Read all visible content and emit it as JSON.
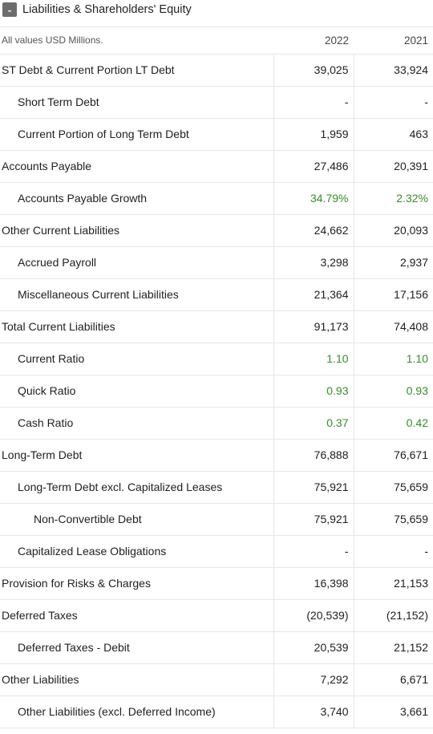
{
  "section": {
    "toggle_symbol": "-",
    "title": "Liabilities & Shareholders' Equity",
    "expanded": true
  },
  "table": {
    "unit_note": "All values USD Millions.",
    "years": [
      "2022",
      "2021"
    ],
    "rows": [
      {
        "label": "ST Debt & Current Portion LT Debt",
        "level": 0,
        "values": [
          "39,025",
          "33,924"
        ],
        "highlight": false
      },
      {
        "label": "Short Term Debt",
        "level": 1,
        "values": [
          "-",
          "-"
        ],
        "highlight": false
      },
      {
        "label": "Current Portion of Long Term Debt",
        "level": 1,
        "values": [
          "1,959",
          "463"
        ],
        "highlight": false
      },
      {
        "label": "Accounts Payable",
        "level": 0,
        "values": [
          "27,486",
          "20,391"
        ],
        "highlight": false
      },
      {
        "label": "Accounts Payable Growth",
        "level": 1,
        "values": [
          "34.79%",
          "2.32%"
        ],
        "highlight": true
      },
      {
        "label": "Other Current Liabilities",
        "level": 0,
        "values": [
          "24,662",
          "20,093"
        ],
        "highlight": false
      },
      {
        "label": "Accrued Payroll",
        "level": 1,
        "values": [
          "3,298",
          "2,937"
        ],
        "highlight": false
      },
      {
        "label": "Miscellaneous Current Liabilities",
        "level": 1,
        "values": [
          "21,364",
          "17,156"
        ],
        "highlight": false
      },
      {
        "label": "Total Current Liabilities",
        "level": 0,
        "values": [
          "91,173",
          "74,408"
        ],
        "highlight": false
      },
      {
        "label": "Current Ratio",
        "level": 1,
        "values": [
          "1.10",
          "1.10"
        ],
        "highlight": true
      },
      {
        "label": "Quick Ratio",
        "level": 1,
        "values": [
          "0.93",
          "0.93"
        ],
        "highlight": true
      },
      {
        "label": "Cash Ratio",
        "level": 1,
        "values": [
          "0.37",
          "0.42"
        ],
        "highlight": true
      },
      {
        "label": "Long-Term Debt",
        "level": 0,
        "values": [
          "76,888",
          "76,671"
        ],
        "highlight": false
      },
      {
        "label": "Long-Term Debt excl. Capitalized Leases",
        "level": 1,
        "values": [
          "75,921",
          "75,659"
        ],
        "highlight": false
      },
      {
        "label": "Non-Convertible Debt",
        "level": 2,
        "values": [
          "75,921",
          "75,659"
        ],
        "highlight": false
      },
      {
        "label": "Capitalized Lease Obligations",
        "level": 1,
        "values": [
          "-",
          "-"
        ],
        "highlight": false
      },
      {
        "label": "Provision for Risks & Charges",
        "level": 0,
        "values": [
          "16,398",
          "21,153"
        ],
        "highlight": false
      },
      {
        "label": "Deferred Taxes",
        "level": 0,
        "values": [
          "(20,539)",
          "(21,152)"
        ],
        "highlight": false
      },
      {
        "label": "Deferred Taxes - Debit",
        "level": 1,
        "values": [
          "20,539",
          "21,152"
        ],
        "highlight": false
      },
      {
        "label": "Other Liabilities",
        "level": 0,
        "values": [
          "7,292",
          "6,671"
        ],
        "highlight": false
      },
      {
        "label": "Other Liabilities (excl. Deferred Income)",
        "level": 1,
        "values": [
          "3,740",
          "3,661"
        ],
        "highlight": false
      }
    ]
  },
  "colors": {
    "positive_value": "#3a8a2e",
    "toggle_bg": "#6d6d6d",
    "divider": "#e6e6e6"
  }
}
